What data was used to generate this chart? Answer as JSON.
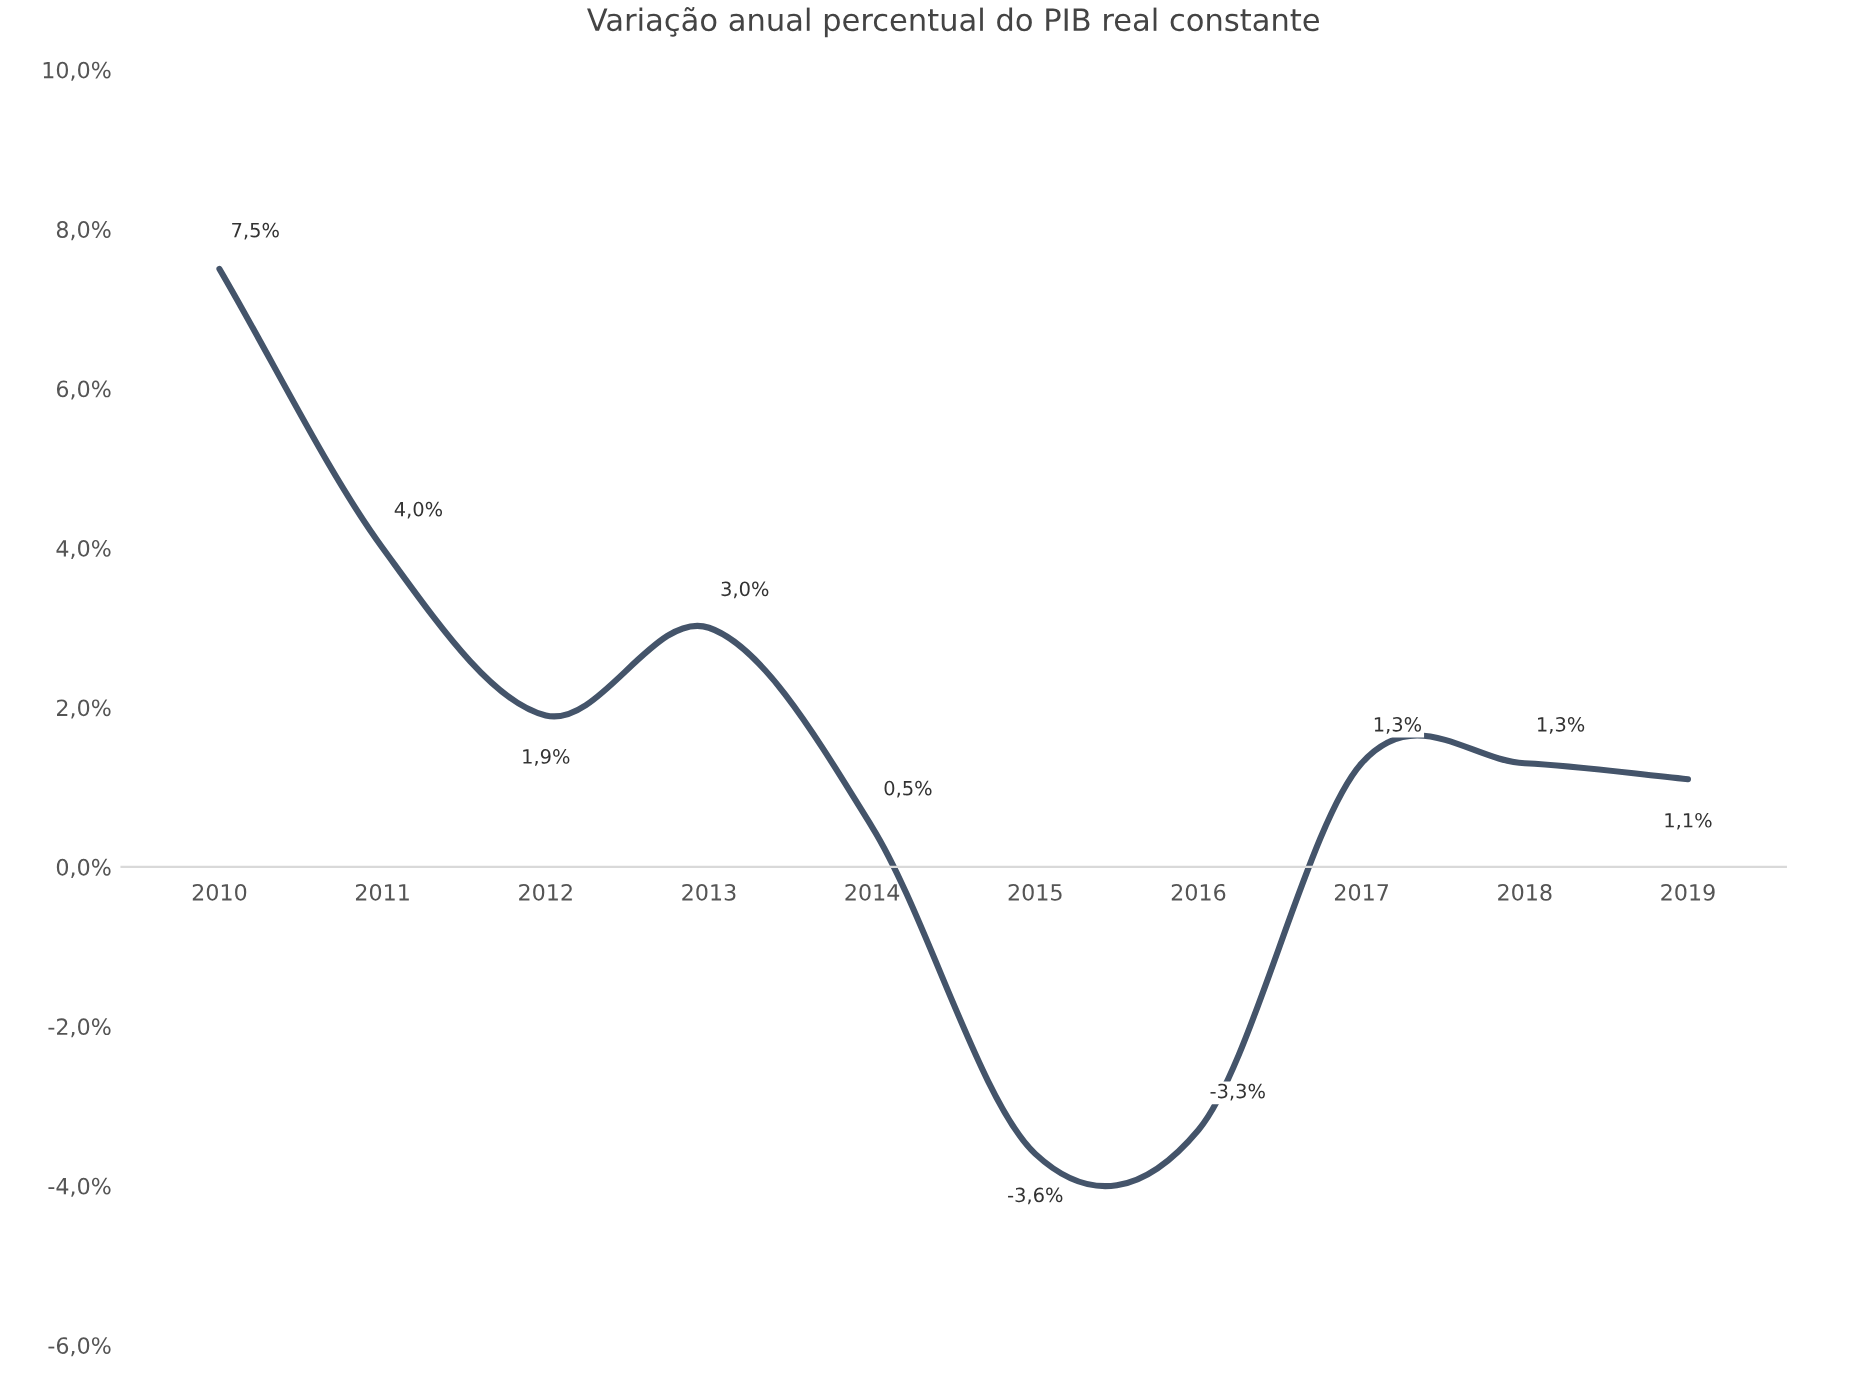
{
  "chart_data": {
    "type": "line",
    "title": "Variação anual percentual do PIB real constante",
    "categories": [
      "2010",
      "2011",
      "2012",
      "2013",
      "2014",
      "2015",
      "2016",
      "2017",
      "2018",
      "2019"
    ],
    "series": [
      {
        "color": "#44546a",
        "values": [
          7.5,
          4.0,
          1.9,
          3.0,
          0.5,
          -3.6,
          -3.3,
          1.3,
          1.3,
          1.1
        ],
        "value_labels": [
          "7,5%",
          "4,0%",
          "1,9%",
          "3,0%",
          "0,5%",
          "-3,6%",
          "-3,3%",
          "1,3%",
          "1,3%",
          "1,1%"
        ]
      }
    ],
    "ylim": [
      -6,
      10
    ],
    "yticks": [
      {
        "value": -6,
        "label": "-6,0%"
      },
      {
        "value": -4,
        "label": "-4,0%"
      },
      {
        "value": -2,
        "label": "-2,0%"
      },
      {
        "value": 0,
        "label": "0,0%"
      },
      {
        "value": 2,
        "label": "2,0%"
      },
      {
        "value": 4,
        "label": "4,0%"
      },
      {
        "value": 6,
        "label": "6,0%"
      },
      {
        "value": 8,
        "label": "8,0%"
      },
      {
        "value": 10,
        "label": "10,0%"
      }
    ],
    "grid": false,
    "marker": "none",
    "line_style": "solid"
  }
}
